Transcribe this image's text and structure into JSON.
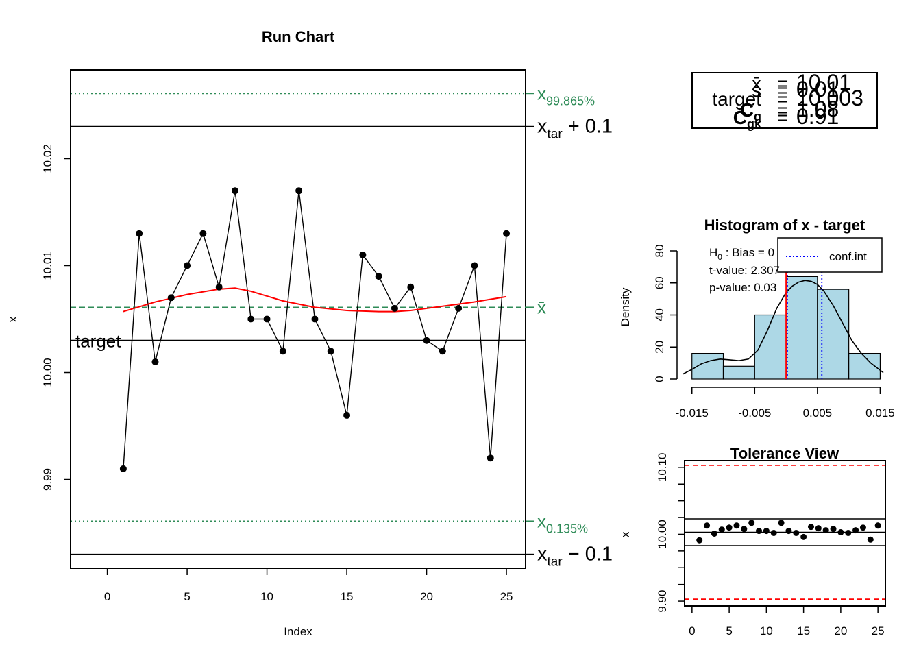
{
  "colors": {
    "axis": "#000000",
    "mean_line": "#2E8B57",
    "quantile_line": "#2E8B57",
    "smooth_line": "#FF0000",
    "hist_fill": "#ADD8E6",
    "ci_line": "#0000FF",
    "spec_line": "#FF0000"
  },
  "summary": {
    "rows": [
      {
        "label": "x̄",
        "value": "10.01"
      },
      {
        "label": "s",
        "value": "0.01"
      },
      {
        "label": "target",
        "value": "10.003"
      },
      {
        "label": "Cg",
        "value": "1.08"
      },
      {
        "label": "Cgk",
        "value": "0.91"
      }
    ]
  },
  "chart_data": [
    {
      "type": "line",
      "title": "Run Chart",
      "xlabel": "Index",
      "ylabel": "x",
      "xlim": [
        -2.3,
        26.2
      ],
      "ylim": [
        9.9817,
        10.0283
      ],
      "xticks": [
        0,
        5,
        10,
        15,
        20,
        25
      ],
      "yticks": [
        9.99,
        10.0,
        10.01,
        10.02
      ],
      "ytick_labels": [
        "9.99",
        "10.00",
        "10.01",
        "10.02"
      ],
      "x": [
        1,
        2,
        3,
        4,
        5,
        6,
        7,
        8,
        9,
        10,
        11,
        12,
        13,
        14,
        15,
        16,
        17,
        18,
        19,
        20,
        21,
        22,
        23,
        24,
        25
      ],
      "values": [
        9.991,
        10.013,
        10.001,
        10.007,
        10.01,
        10.013,
        10.008,
        10.017,
        10.005,
        10.005,
        10.002,
        10.017,
        10.005,
        10.002,
        9.996,
        10.011,
        10.009,
        10.006,
        10.008,
        10.003,
        10.002,
        10.006,
        10.01,
        9.992,
        10.013
      ],
      "smooth": {
        "x": [
          1,
          3,
          5,
          7,
          8,
          9,
          11,
          13,
          15,
          17,
          18,
          19,
          21,
          23,
          25
        ],
        "y": [
          10.0057,
          10.0066,
          10.0073,
          10.0078,
          10.0079,
          10.0076,
          10.0067,
          10.0061,
          10.0058,
          10.0057,
          10.0057,
          10.0058,
          10.0062,
          10.0066,
          10.0071
        ]
      },
      "reference_lines": [
        {
          "value": 10.0261,
          "label_main": "x",
          "label_sub": "99.865%",
          "style": "dotted",
          "color_key": "quantile_line"
        },
        {
          "value": 10.023,
          "label_main": "x",
          "label_sub": "tar",
          "label_rest": " + 0.1",
          "style": "solid",
          "color_key": "axis"
        },
        {
          "value": 10.0061,
          "label_main": "x̄",
          "label_sub": "",
          "style": "dashed",
          "color_key": "mean_line"
        },
        {
          "value": 10.003,
          "label_inside": "target",
          "style": "solid",
          "color_key": "axis"
        },
        {
          "value": 9.9861,
          "label_main": "x",
          "label_sub": "0.135%",
          "style": "dotted",
          "color_key": "quantile_line"
        },
        {
          "value": 9.983,
          "label_main": "x",
          "label_sub": "tar",
          "label_rest": " − 0.1",
          "style": "solid",
          "color_key": "axis"
        }
      ]
    },
    {
      "type": "bar",
      "title": "Histogram of x - target",
      "xlabel": "",
      "ylabel": "Density",
      "xlim": [
        -0.0165,
        0.0155
      ],
      "ylim": [
        0,
        80
      ],
      "xticks": [
        -0.015,
        -0.005,
        0.005,
        0.015
      ],
      "xtick_labels": [
        "-0.015",
        "-0.005",
        "0.005",
        "0.015"
      ],
      "yticks": [
        0,
        20,
        40,
        60,
        80
      ],
      "ytick_labels": [
        "0",
        "20",
        "40",
        "60",
        "80"
      ],
      "bins": [
        {
          "from": -0.015,
          "to": -0.01,
          "density": 16
        },
        {
          "from": -0.01,
          "to": -0.005,
          "density": 8
        },
        {
          "from": -0.005,
          "to": 0.0,
          "density": 40
        },
        {
          "from": 0.0,
          "to": 0.005,
          "density": 64
        },
        {
          "from": 0.005,
          "to": 0.01,
          "density": 56
        },
        {
          "from": 0.01,
          "to": 0.015,
          "density": 16
        }
      ],
      "density_curve": {
        "x": [
          -0.0165,
          -0.015,
          -0.0135,
          -0.012,
          -0.0105,
          -0.009,
          -0.0075,
          -0.006,
          -0.0045,
          -0.003,
          -0.0015,
          0.0,
          0.001,
          0.002,
          0.003,
          0.004,
          0.005,
          0.006,
          0.0075,
          0.009,
          0.0105,
          0.012,
          0.0135,
          0.0155
        ],
        "y": [
          3,
          6,
          9.5,
          11.5,
          12.5,
          12,
          11.5,
          12.5,
          18,
          30,
          44,
          54,
          58,
          60.5,
          61.5,
          61,
          59,
          55,
          46,
          35,
          24,
          16,
          10,
          4
        ]
      },
      "h0_line": 0.0,
      "conf_int": [
        0.0002,
        0.0057
      ],
      "annotations": {
        "h0": "H",
        "h0_sub": "0",
        "h0_rest": " : Bias = 0",
        "t_value": "t-value:  2.307",
        "p_value": "p-value:  0.03"
      },
      "legend": {
        "label": "conf.int",
        "placement": "top-right"
      }
    },
    {
      "type": "scatter",
      "title": "Tolerance View",
      "xlabel": "",
      "ylabel": "x",
      "xlim": [
        -1,
        26
      ],
      "ylim": [
        9.9,
        10.1
      ],
      "xticks": [
        0,
        5,
        10,
        15,
        20,
        25
      ],
      "yticks": [
        9.9,
        10.0,
        10.1
      ],
      "ytick_labels": [
        "9.90",
        "10.00",
        "10.10"
      ],
      "spec_limits": [
        9.903,
        10.103
      ],
      "ref_lines": [
        10.023,
        10.003,
        9.983
      ]
    }
  ]
}
